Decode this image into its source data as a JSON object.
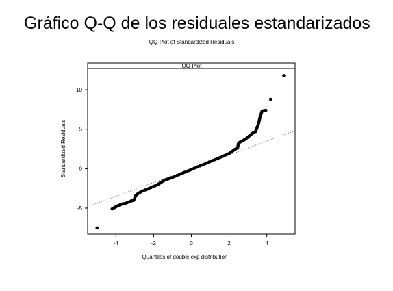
{
  "slide": {
    "title": "Gráfico Q-Q de los residuales estandarizados"
  },
  "chart_data": {
    "type": "scatter",
    "title": "QQ-Plot of Standardized Residuals",
    "strip_label": "QQ-Plot",
    "xlabel": "Quantiles of double.exp distribution",
    "ylabel": "Standardized Residuals",
    "xlim": [
      -5.5,
      5.5
    ],
    "ylim": [
      -8.3,
      12.7
    ],
    "x_ticks": [
      -4,
      -2,
      0,
      2,
      4
    ],
    "x_tick_labels": [
      "-4",
      "-2",
      "0",
      "2",
      "4"
    ],
    "y_ticks": [
      -5,
      0,
      5,
      10
    ],
    "y_tick_labels": [
      "-5",
      "0",
      "5",
      "10"
    ],
    "grid": false,
    "reference_line": {
      "x": [
        -5.5,
        5.5
      ],
      "y": [
        -4.8,
        4.8
      ]
    },
    "series": [
      {
        "points": [
          [
            -5.0,
            -7.5
          ],
          [
            -4.2,
            -5.1
          ],
          [
            -3.9,
            -4.7
          ],
          [
            -3.7,
            -4.5
          ],
          [
            -3.5,
            -4.4
          ],
          [
            -3.4,
            -4.3
          ],
          [
            -3.2,
            -4.1
          ],
          [
            -3.05,
            -4.0
          ],
          [
            -2.95,
            -3.4
          ],
          [
            -2.85,
            -3.2
          ],
          [
            -2.75,
            -3.05
          ],
          [
            -2.65,
            -2.9
          ],
          [
            -2.55,
            -2.8
          ],
          [
            -2.45,
            -2.7
          ],
          [
            -2.35,
            -2.6
          ],
          [
            -2.25,
            -2.5
          ],
          [
            -2.15,
            -2.4
          ],
          [
            -2.05,
            -2.3
          ],
          [
            -1.95,
            -2.2
          ],
          [
            -1.85,
            -2.1
          ],
          [
            -1.75,
            -1.95
          ],
          [
            -1.65,
            -1.8
          ],
          [
            -1.55,
            -1.65
          ],
          [
            -1.45,
            -1.5
          ],
          [
            -1.35,
            -1.4
          ],
          [
            -1.25,
            -1.32
          ],
          [
            -1.15,
            -1.25
          ],
          [
            -1.05,
            -1.15
          ],
          [
            -0.95,
            -1.05
          ],
          [
            -0.85,
            -0.95
          ],
          [
            -0.75,
            -0.85
          ],
          [
            -0.65,
            -0.75
          ],
          [
            -0.55,
            -0.65
          ],
          [
            -0.45,
            -0.55
          ],
          [
            -0.35,
            -0.45
          ],
          [
            -0.25,
            -0.35
          ],
          [
            -0.15,
            -0.25
          ],
          [
            -0.05,
            -0.15
          ],
          [
            0.05,
            -0.05
          ],
          [
            0.15,
            0.05
          ],
          [
            0.25,
            0.15
          ],
          [
            0.35,
            0.25
          ],
          [
            0.45,
            0.35
          ],
          [
            0.55,
            0.45
          ],
          [
            0.65,
            0.55
          ],
          [
            0.75,
            0.65
          ],
          [
            0.85,
            0.75
          ],
          [
            0.95,
            0.85
          ],
          [
            1.05,
            0.95
          ],
          [
            1.15,
            1.05
          ],
          [
            1.25,
            1.15
          ],
          [
            1.35,
            1.25
          ],
          [
            1.45,
            1.35
          ],
          [
            1.55,
            1.45
          ],
          [
            1.65,
            1.55
          ],
          [
            1.75,
            1.65
          ],
          [
            1.85,
            1.75
          ],
          [
            1.95,
            1.85
          ],
          [
            2.05,
            2.0
          ],
          [
            2.15,
            2.15
          ],
          [
            2.25,
            2.35
          ],
          [
            2.35,
            2.5
          ],
          [
            2.45,
            2.6
          ],
          [
            2.5,
            3.2
          ],
          [
            2.6,
            3.4
          ],
          [
            2.7,
            3.5
          ],
          [
            2.8,
            3.65
          ],
          [
            2.9,
            3.8
          ],
          [
            3.0,
            4.0
          ],
          [
            3.1,
            4.2
          ],
          [
            3.2,
            4.4
          ],
          [
            3.3,
            4.6
          ],
          [
            3.4,
            4.7
          ],
          [
            3.55,
            5.6
          ],
          [
            3.65,
            6.6
          ],
          [
            3.75,
            7.3
          ],
          [
            3.95,
            7.4
          ],
          [
            4.2,
            8.8
          ],
          [
            4.9,
            11.8
          ]
        ]
      }
    ]
  }
}
